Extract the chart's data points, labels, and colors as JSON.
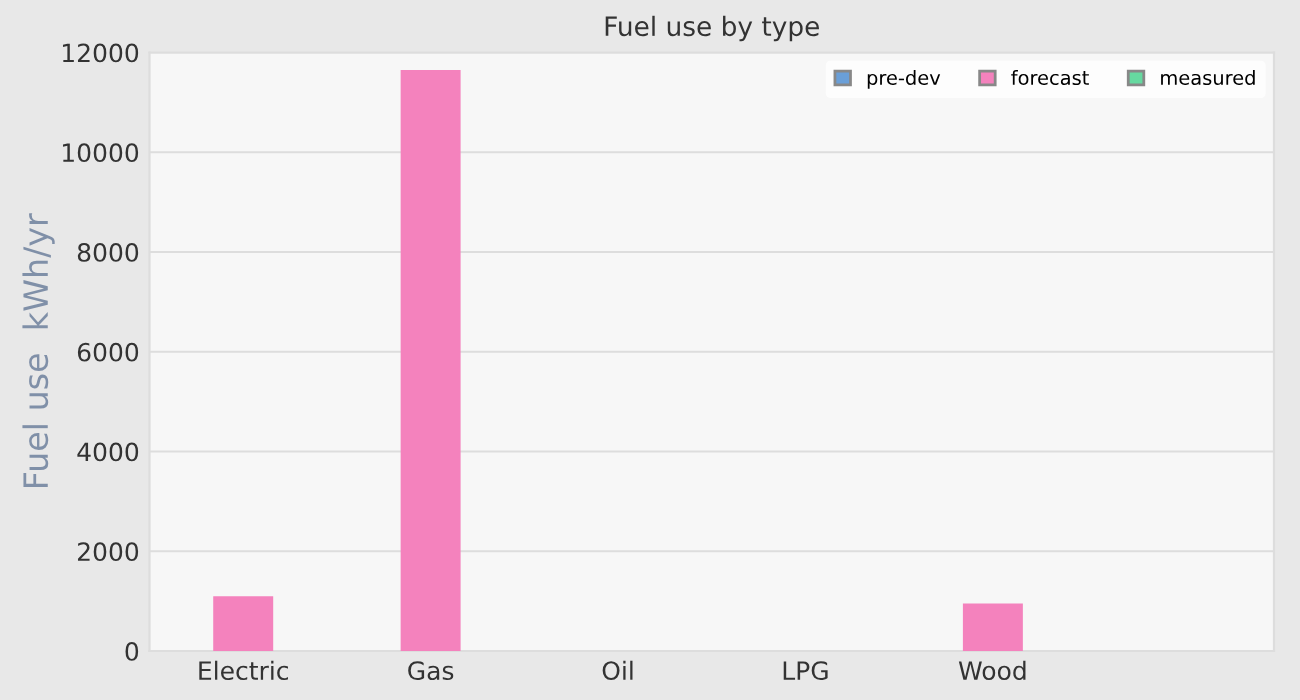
{
  "chart_data": {
    "type": "bar",
    "title": "Fuel use by type",
    "ylabel": "Fuel use  kWh/yr",
    "categories": [
      "Electric",
      "Gas",
      "Oil",
      "LPG",
      "Wood",
      null
    ],
    "series": [
      {
        "name": "pre-dev",
        "color": "#6a9fd8",
        "values": [
          0,
          0,
          0,
          0,
          0,
          null
        ]
      },
      {
        "name": "forecast",
        "color": "#f482bd",
        "values": [
          1100,
          11650,
          0,
          0,
          950,
          null
        ]
      },
      {
        "name": "measured",
        "color": "#66d9a0",
        "values": [
          0,
          0,
          0,
          0,
          0,
          null
        ]
      }
    ],
    "ylim": [
      0,
      12000
    ],
    "yticks": [
      0,
      2000,
      4000,
      6000,
      8000,
      10000,
      12000
    ],
    "grid": "y",
    "legend": "top right"
  }
}
